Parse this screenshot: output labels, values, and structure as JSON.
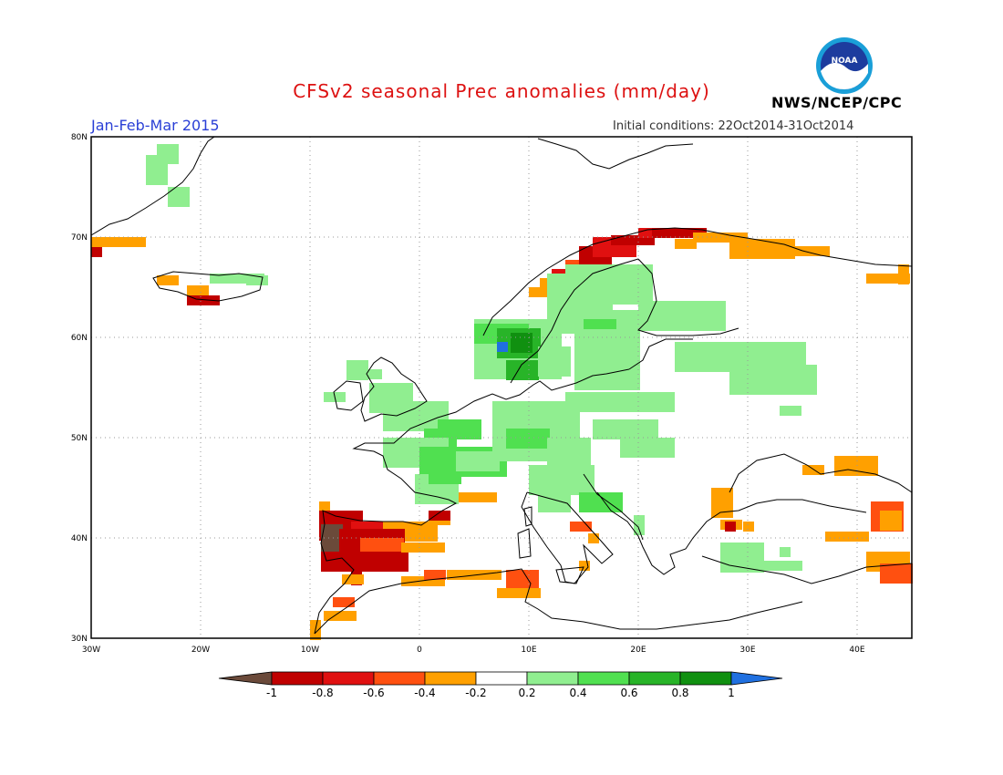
{
  "title": "CFSv2 seasonal Prec anomalies (mm/day)",
  "period": "Jan-Feb-Mar 2015",
  "initial_conditions": "Initial conditions: 22Oct2014-31Oct2014",
  "agency": "NWS/NCEP/CPC",
  "logo_text": "NOAA",
  "map": {
    "lon_range": [
      -30,
      45
    ],
    "lat_range": [
      30,
      80
    ],
    "lat_ticks": [
      "30N",
      "40N",
      "50N",
      "60N",
      "70N",
      "80N"
    ],
    "lon_ticks": [
      "30W",
      "20W",
      "10W",
      "0",
      "10E",
      "20E",
      "30E",
      "40E"
    ],
    "grid": "dotted"
  },
  "colorbar": {
    "labels": [
      "-1",
      "-0.8",
      "-0.6",
      "-0.4",
      "-0.2",
      "0.2",
      "0.4",
      "0.6",
      "0.8",
      "1"
    ],
    "colors": {
      "lt_-1": "#6b4a3a",
      "-1_-0.8": "#c00000",
      "-0.8_-0.6": "#e01010",
      "-0.6_-0.4": "#ff5010",
      "-0.4_-0.2": "#ffa000",
      "-0.2_0.2": "#ffffff",
      "0.2_0.4": "#90ee90",
      "0.4_0.6": "#50e050",
      "0.6_0.8": "#28b428",
      "0.8_1": "#109010",
      "gt_1": "#2070e0"
    }
  },
  "anomaly_regions": [
    {
      "region": "Iberian Peninsula",
      "range": "-1 to -0.4",
      "color": "#c00000"
    },
    {
      "region": "Southwest Iberia",
      "range": "< -1",
      "color": "#6b4a3a"
    },
    {
      "region": "Northwest Africa coast",
      "range": "-0.6 to -0.2",
      "color": "#ffa000"
    },
    {
      "region": "Norwegian coast",
      "range": "-1 to -0.2",
      "color": "#c00000"
    },
    {
      "region": "Central Europe",
      "range": "0.2 to 0.8",
      "color": "#50e050"
    },
    {
      "region": "Southern Norway",
      "range": "> 0.6",
      "color": "#28b428"
    },
    {
      "region": "Scandinavia / Baltic",
      "range": "0.2 to 0.4",
      "color": "#90ee90"
    },
    {
      "region": "Turkey / Levant",
      "range": "-0.6 to -0.2",
      "color": "#ffa000"
    }
  ]
}
